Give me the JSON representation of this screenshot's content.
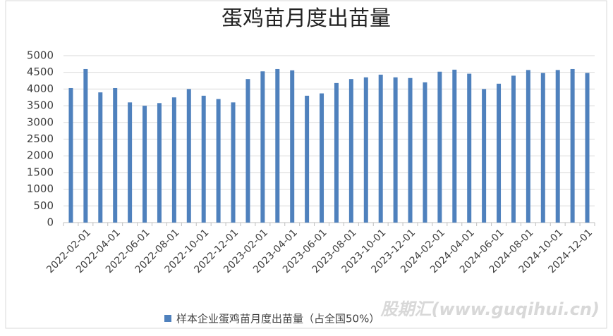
{
  "chart_data": {
    "type": "bar",
    "title": "蛋鸡苗月度出苗量",
    "categories": [
      null,
      "2022-02-01",
      null,
      "2022-04-01",
      null,
      "2022-06-01",
      null,
      "2022-08-01",
      null,
      "2022-10-01",
      null,
      "2022-12-01",
      null,
      "2023-02-01",
      null,
      "2023-04-01",
      null,
      "2023-06-01",
      null,
      "2023-08-01",
      null,
      "2023-10-01",
      null,
      "2023-12-01",
      null,
      "2024-02-01",
      null,
      "2024-04-01",
      null,
      "2024-06-01",
      null,
      "2024-08-01",
      null,
      "2024-10-01",
      null,
      "2024-12-01"
    ],
    "series": [
      {
        "name": "样本企业蛋鸡苗月度出苗量（占全国50%）",
        "color": "#4f81bd",
        "values": [
          4030,
          4600,
          3900,
          4030,
          3600,
          3500,
          3580,
          3750,
          4000,
          3800,
          3700,
          3600,
          4300,
          4530,
          4600,
          4560,
          3800,
          3870,
          4180,
          4300,
          4350,
          4430,
          4350,
          4330,
          4200,
          4520,
          4580,
          4460,
          4000,
          4160,
          4400,
          4570,
          4480,
          4570,
          4600,
          4480
        ]
      }
    ],
    "ylim": [
      0,
      5000
    ],
    "yticks": [
      0,
      500,
      1000,
      1500,
      2000,
      2500,
      3000,
      3500,
      4000,
      4500,
      5000
    ],
    "grid": true,
    "legend": "bottom",
    "watermark": "股期汇(www.guqihui.cn)"
  }
}
